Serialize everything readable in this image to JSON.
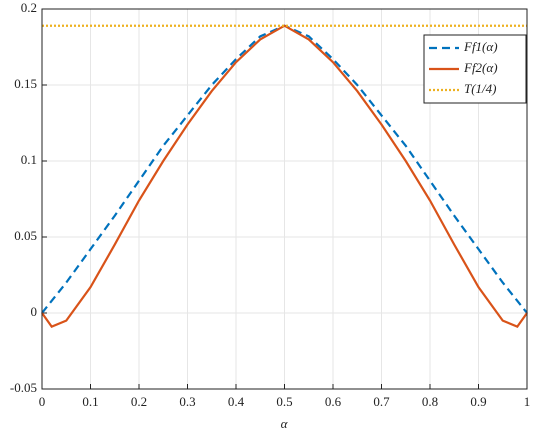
{
  "chart_data": {
    "type": "line",
    "xlabel": "α",
    "x": [
      0,
      0.02,
      0.05,
      0.1,
      0.15,
      0.2,
      0.25,
      0.3,
      0.35,
      0.4,
      0.45,
      0.5,
      0.55,
      0.6,
      0.65,
      0.7,
      0.75,
      0.8,
      0.85,
      0.9,
      0.95,
      0.98,
      1
    ],
    "series": [
      {
        "name": "Ff1(α)",
        "color": "#0072bd",
        "dash": "dashed",
        "values": [
          0,
          0.008,
          0.02,
          0.042,
          0.064,
          0.087,
          0.11,
          0.13,
          0.15,
          0.167,
          0.182,
          0.189,
          0.182,
          0.167,
          0.15,
          0.13,
          0.11,
          0.087,
          0.064,
          0.042,
          0.02,
          0.008,
          0
        ]
      },
      {
        "name": "Ff2(α)",
        "color": "#d95319",
        "dash": "solid",
        "values": [
          0,
          -0.009,
          -0.005,
          0.017,
          0.045,
          0.074,
          0.1,
          0.124,
          0.146,
          0.165,
          0.18,
          0.189,
          0.18,
          0.165,
          0.146,
          0.124,
          0.1,
          0.074,
          0.045,
          0.017,
          -0.005,
          -0.009,
          0
        ]
      },
      {
        "name": "T(1/4)",
        "color": "#edb120",
        "dash": "dotted",
        "values": [
          0.189,
          0.189,
          0.189,
          0.189,
          0.189,
          0.189,
          0.189,
          0.189,
          0.189,
          0.189,
          0.189,
          0.189,
          0.189,
          0.189,
          0.189,
          0.189,
          0.189,
          0.189,
          0.189,
          0.189,
          0.189,
          0.189,
          0.189
        ]
      }
    ],
    "xlim": [
      0,
      1
    ],
    "xticks": [
      0,
      0.1,
      0.2,
      0.3,
      0.4,
      0.5,
      0.6,
      0.7,
      0.8,
      0.9,
      1
    ],
    "ylim": [
      -0.05,
      0.2
    ],
    "yticks": [
      -0.05,
      0,
      0.05,
      0.1,
      0.15,
      0.2
    ],
    "grid": true,
    "legend": "top-right"
  }
}
